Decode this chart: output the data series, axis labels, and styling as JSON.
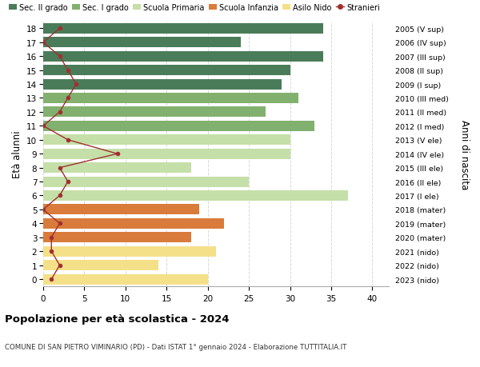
{
  "ages": [
    18,
    17,
    16,
    15,
    14,
    13,
    12,
    11,
    10,
    9,
    8,
    7,
    6,
    5,
    4,
    3,
    2,
    1,
    0
  ],
  "bar_values": [
    34,
    24,
    34,
    30,
    29,
    31,
    27,
    33,
    30,
    30,
    18,
    25,
    37,
    19,
    22,
    18,
    21,
    14,
    20
  ],
  "bar_colors": [
    "#4a7c59",
    "#4a7c59",
    "#4a7c59",
    "#4a7c59",
    "#4a7c59",
    "#82b06e",
    "#82b06e",
    "#82b06e",
    "#c5dfa8",
    "#c5dfa8",
    "#c5dfa8",
    "#c5dfa8",
    "#c5dfa8",
    "#d97b3b",
    "#d97b3b",
    "#d97b3b",
    "#f5e08a",
    "#f5e08a",
    "#f5e08a"
  ],
  "stranieri_values": [
    2,
    0,
    2,
    3,
    4,
    3,
    2,
    0,
    3,
    9,
    2,
    3,
    2,
    0,
    2,
    1,
    1,
    2,
    1
  ],
  "right_labels": [
    "2005 (V sup)",
    "2006 (IV sup)",
    "2007 (III sup)",
    "2008 (II sup)",
    "2009 (I sup)",
    "2010 (III med)",
    "2011 (II med)",
    "2012 (I med)",
    "2013 (V ele)",
    "2014 (IV ele)",
    "2015 (III ele)",
    "2016 (II ele)",
    "2017 (I ele)",
    "2018 (mater)",
    "2019 (mater)",
    "2020 (mater)",
    "2021 (nido)",
    "2022 (nido)",
    "2023 (nido)"
  ],
  "xlim": [
    0,
    42
  ],
  "xticks": [
    0,
    5,
    10,
    15,
    20,
    25,
    30,
    35,
    40
  ],
  "ylabel": "Età alunni",
  "right_ylabel": "Anni di nascita",
  "title": "Popolazione per età scolastica - 2024",
  "subtitle": "COMUNE DI SAN PIETRO VIMINARIO (PD) - Dati ISTAT 1° gennaio 2024 - Elaborazione TUTTITALIA.IT",
  "legend_items": [
    {
      "label": "Sec. II grado",
      "color": "#4a7c59"
    },
    {
      "label": "Sec. I grado",
      "color": "#82b06e"
    },
    {
      "label": "Scuola Primaria",
      "color": "#c5dfa8"
    },
    {
      "label": "Scuola Infanzia",
      "color": "#d97b3b"
    },
    {
      "label": "Asilo Nido",
      "color": "#f5e08a"
    },
    {
      "label": "Stranieri",
      "color": "#a03030"
    }
  ],
  "bar_height": 0.75,
  "stranieri_color": "#a03030",
  "background_color": "#ffffff",
  "grid_color": "#d8d8d8"
}
